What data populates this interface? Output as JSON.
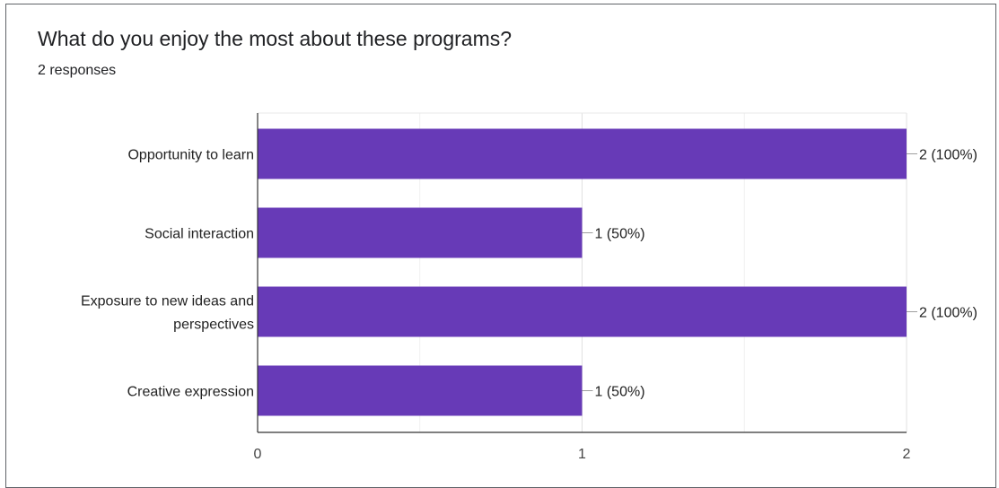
{
  "header": {
    "title": "What do you enjoy the most about these programs?",
    "subtitle": "2 responses"
  },
  "chart_data": {
    "type": "bar",
    "orientation": "horizontal",
    "categories": [
      [
        "Opportunity to learn"
      ],
      [
        "Social interaction"
      ],
      [
        "Exposure to new ideas and",
        "perspectives"
      ],
      [
        "Creative expression"
      ]
    ],
    "values": [
      2,
      1,
      2,
      1
    ],
    "value_labels": [
      "2 (100%)",
      "1 (50%)",
      "2 (100%)",
      "1 (50%)"
    ],
    "xlim": [
      0,
      2
    ],
    "ticks": [
      "0",
      "1",
      "2"
    ],
    "bar_color": "#673ab7",
    "grid": true
  }
}
